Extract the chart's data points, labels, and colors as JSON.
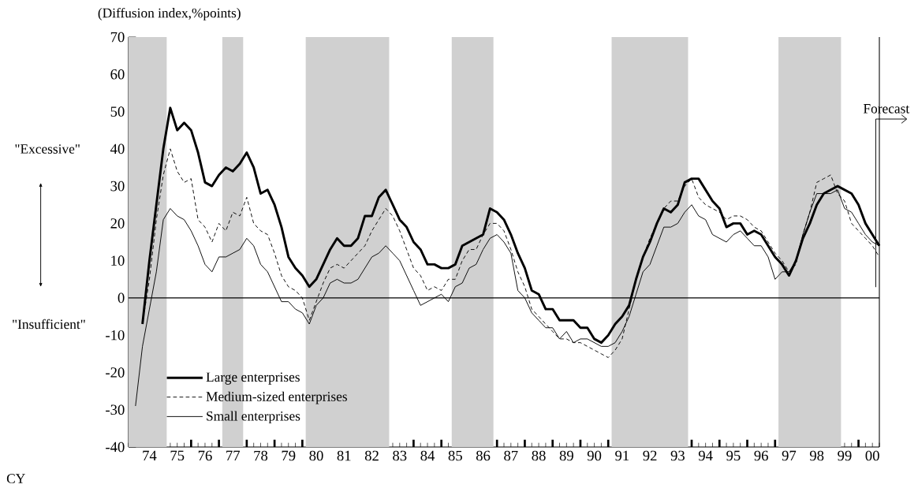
{
  "chart_data": {
    "type": "line",
    "ylabel": "(Diffusion index,%points)",
    "annotations": [
      "\"Excessive\"",
      "\"Insufficient\"",
      "CY"
    ],
    "x": [
      "1974-01",
      "1974-04",
      "1974-07",
      "1974-10",
      "1975-01",
      "1975-04",
      "1975-07",
      "1975-10",
      "1976-01",
      "1976-04",
      "1976-07",
      "1976-10",
      "1977-01",
      "1977-04",
      "1977-07",
      "1977-10",
      "1978-01",
      "1978-04",
      "1978-07",
      "1978-10",
      "1979-01",
      "1979-04",
      "1979-07",
      "1979-10",
      "1980-01",
      "1980-04",
      "1980-07",
      "1980-10",
      "1981-01",
      "1981-04",
      "1981-07",
      "1981-10",
      "1982-01",
      "1982-04",
      "1982-07",
      "1982-10",
      "1983-01",
      "1983-04",
      "1983-07",
      "1983-10",
      "1984-01",
      "1984-04",
      "1984-07",
      "1984-10",
      "1985-01",
      "1985-04",
      "1985-07",
      "1985-10",
      "1986-01",
      "1986-04",
      "1986-07",
      "1986-10",
      "1987-01",
      "1987-04",
      "1987-07",
      "1987-10",
      "1988-01",
      "1988-04",
      "1988-07",
      "1988-10",
      "1989-01",
      "1989-04",
      "1989-07",
      "1989-10",
      "1990-01",
      "1990-04",
      "1990-07",
      "1990-10",
      "1991-01",
      "1991-04",
      "1991-07",
      "1991-10",
      "1992-01",
      "1992-04",
      "1992-07",
      "1992-10",
      "1993-01",
      "1993-04",
      "1993-07",
      "1993-10",
      "1994-01",
      "1994-04",
      "1994-07",
      "1994-10",
      "1995-01",
      "1995-04",
      "1995-07",
      "1995-10",
      "1996-01",
      "1996-04",
      "1996-07",
      "1996-10",
      "1997-01",
      "1997-04",
      "1997-07",
      "1997-10",
      "1998-01",
      "1998-04",
      "1998-07",
      "1998-10",
      "1999-01",
      "1999-04",
      "1999-07",
      "1999-10",
      "2000-01",
      "2000-04",
      "2000-07",
      "2000-10"
    ],
    "series": [
      {
        "name": "Large enterprises",
        "color": "#000000",
        "line_style": "solid",
        "values": [
          null,
          -7,
          10,
          25,
          40,
          51,
          45,
          47,
          45,
          39,
          31,
          30,
          33,
          35,
          34,
          36,
          39,
          35,
          28,
          29,
          25,
          19,
          11,
          8,
          6,
          3,
          5,
          9,
          13,
          16,
          14,
          14,
          16,
          22,
          22,
          27,
          29,
          25,
          21,
          19,
          15,
          13,
          9,
          9,
          8,
          8,
          9,
          14,
          15,
          16,
          17,
          24,
          23,
          21,
          17,
          12,
          8,
          2,
          1,
          -3,
          -3,
          -6,
          -6,
          -6,
          -8,
          -8,
          -11,
          -12,
          -10,
          -7,
          -5,
          -2,
          5,
          11,
          15,
          20,
          24,
          23,
          25,
          31,
          32,
          32,
          29,
          26,
          24,
          19,
          20,
          20,
          17,
          18,
          17,
          14,
          11,
          9,
          6,
          10,
          16,
          20,
          25,
          28,
          29,
          30,
          29,
          28,
          25,
          20,
          17,
          14
        ]
      },
      {
        "name": "Medium-sized enterprises",
        "color": "#000000",
        "line_style": "dashed",
        "values": [
          null,
          -7,
          5,
          21,
          33,
          40,
          34,
          31,
          32,
          21,
          19,
          15,
          20,
          18,
          23,
          22,
          27,
          20,
          18,
          17,
          12,
          6,
          3,
          2,
          0,
          -6,
          -1,
          4,
          8,
          9,
          8,
          10,
          12,
          14,
          18,
          21,
          24,
          22,
          18,
          13,
          8,
          6,
          2,
          3,
          2,
          5,
          5,
          10,
          13,
          13,
          17,
          20,
          20,
          18,
          13,
          7,
          3,
          -3,
          -5,
          -7,
          -9,
          -11,
          -11,
          -12,
          -12,
          -13,
          -14,
          -15,
          -16,
          -14,
          -11,
          -3,
          5,
          11,
          16,
          20,
          24,
          26,
          26,
          30,
          32,
          27,
          25,
          24,
          23,
          21,
          22,
          22,
          21,
          19,
          18,
          15,
          12,
          10,
          7,
          9,
          17,
          23,
          31,
          32,
          33,
          28,
          26,
          20,
          18,
          16,
          14,
          11
        ]
      },
      {
        "name": "Small enterprises",
        "color": "#000000",
        "line_style": "solid",
        "values": [
          -29,
          -13,
          -3,
          7,
          21,
          24,
          22,
          21,
          18,
          14,
          9,
          7,
          11,
          11,
          12,
          13,
          16,
          14,
          9,
          7,
          3,
          -1,
          -1,
          -3,
          -4,
          -7,
          -2,
          0,
          4,
          5,
          4,
          4,
          5,
          8,
          11,
          12,
          14,
          12,
          10,
          6,
          2,
          -2,
          -1,
          0,
          1,
          -1,
          3,
          4,
          8,
          9,
          13,
          16,
          17,
          15,
          12,
          2,
          0,
          -4,
          -6,
          -8,
          -8,
          -11,
          -9,
          -12,
          -11,
          -11,
          -12,
          -13,
          -13,
          -12,
          -9,
          -5,
          1,
          7,
          9,
          14,
          19,
          19,
          20,
          23,
          25,
          22,
          21,
          17,
          16,
          15,
          17,
          18,
          16,
          14,
          14,
          11,
          5,
          7,
          7,
          10,
          17,
          23,
          28,
          28,
          28,
          29,
          24,
          23,
          20,
          17,
          15,
          14
        ]
      }
    ],
    "xlim": [
      "1973-10",
      "2000-10"
    ],
    "ylim": [
      -40,
      70
    ],
    "xticks": [
      {
        "value": "1974",
        "label": null
      },
      {
        "value": "1974-07",
        "label": "74"
      },
      {
        "value": "1975",
        "label": null
      },
      {
        "value": "1975-07",
        "label": "75"
      },
      {
        "value": "1976",
        "label": null
      },
      {
        "value": "1976-07",
        "label": "76"
      },
      {
        "value": "1977",
        "label": null
      },
      {
        "value": "1977-07",
        "label": "77"
      },
      {
        "value": "1978",
        "label": null
      },
      {
        "value": "1978-07",
        "label": "78"
      },
      {
        "value": "1979",
        "label": null
      },
      {
        "value": "1979-07",
        "label": "79"
      },
      {
        "value": "1980",
        "label": null
      },
      {
        "value": "1980-07",
        "label": "80"
      },
      {
        "value": "1981",
        "label": null
      },
      {
        "value": "1981-07",
        "label": "81"
      },
      {
        "value": "1982",
        "label": null
      },
      {
        "value": "1982-07",
        "label": "82"
      },
      {
        "value": "1983",
        "label": null
      },
      {
        "value": "1983-07",
        "label": "83"
      },
      {
        "value": "1984",
        "label": null
      },
      {
        "value": "1984-07",
        "label": "84"
      },
      {
        "value": "1985",
        "label": null
      },
      {
        "value": "1985-07",
        "label": "85"
      },
      {
        "value": "1986",
        "label": null
      },
      {
        "value": "1986-07",
        "label": "86"
      },
      {
        "value": "1987",
        "label": null
      },
      {
        "value": "1987-07",
        "label": "87"
      },
      {
        "value": "1988",
        "label": null
      },
      {
        "value": "1988-07",
        "label": "88"
      },
      {
        "value": "1989",
        "label": null
      },
      {
        "value": "1989-07",
        "label": "89"
      },
      {
        "value": "1990",
        "label": null
      },
      {
        "value": "1990-07",
        "label": "90"
      },
      {
        "value": "1991",
        "label": null
      },
      {
        "value": "1991-07",
        "label": "91"
      },
      {
        "value": "1992",
        "label": null
      },
      {
        "value": "1992-07",
        "label": "92"
      },
      {
        "value": "1993",
        "label": null
      },
      {
        "value": "1993-07",
        "label": "93"
      },
      {
        "value": "1994",
        "label": null
      },
      {
        "value": "1994-07",
        "label": "94"
      },
      {
        "value": "1995",
        "label": null
      },
      {
        "value": "1995-07",
        "label": "95"
      },
      {
        "value": "1996",
        "label": null
      },
      {
        "value": "1996-07",
        "label": "96"
      },
      {
        "value": "1997",
        "label": null
      },
      {
        "value": "1997-07",
        "label": "97"
      },
      {
        "value": "1998",
        "label": null
      },
      {
        "value": "1998-07",
        "label": "98"
      },
      {
        "value": "1999",
        "label": null
      },
      {
        "value": "1999-07",
        "label": "99"
      },
      {
        "value": "2000",
        "label": null
      },
      {
        "value": "2000-07",
        "label": "00"
      }
    ],
    "yticks": [
      -40,
      -30,
      -20,
      -10,
      0,
      10,
      20,
      30,
      40,
      50,
      60,
      70
    ],
    "bands": [
      {
        "axis": "x",
        "from": "1973-10",
        "to": "1975-02-15",
        "color": "#d0d0d0"
      },
      {
        "axis": "x",
        "from": "1977-02-15",
        "to": "1977-11-15",
        "color": "#d0d0d0"
      },
      {
        "axis": "x",
        "from": "1980-02-15",
        "to": "1983-02-15",
        "color": "#d0d0d0"
      },
      {
        "axis": "x",
        "from": "1985-05-15",
        "to": "1986-11-15",
        "color": "#d0d0d0"
      },
      {
        "axis": "x",
        "from": "1991-02-15",
        "to": "1993-11-15",
        "color": "#d0d0d0"
      },
      {
        "axis": "x",
        "from": "1997-02-15",
        "to": "1999-05-15",
        "color": "#d0d0d0"
      }
    ],
    "ref_lines": [
      {
        "axis": "y",
        "value": 0
      },
      {
        "axis": "x",
        "value": "2000-08-15",
        "label": "Forecast"
      }
    ],
    "legend": "bottom left"
  }
}
